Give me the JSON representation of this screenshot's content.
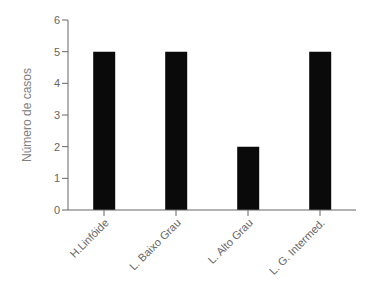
{
  "chart_data": {
    "type": "bar",
    "categories": [
      "H.Linfóide",
      "L. Baixo Grau",
      "L. Alto Grau",
      "L. G. Intermed."
    ],
    "values": [
      5,
      5,
      2,
      5
    ],
    "color": "#0a0a0a",
    "ylabel": "Número de casos",
    "ylim": [
      0,
      6
    ],
    "yticks": [
      0,
      1,
      2,
      3,
      4,
      5,
      6
    ],
    "grid": false
  }
}
